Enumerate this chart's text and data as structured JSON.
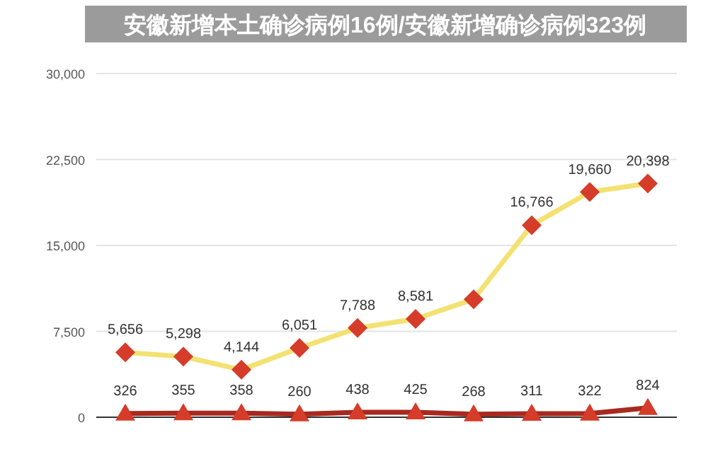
{
  "chart_data": {
    "type": "line",
    "title": "安徽新增本土确诊病例16例/安徽新增确诊病例323例",
    "categories": [
      null,
      null,
      null,
      null,
      null,
      null,
      null,
      null,
      null,
      null
    ],
    "series": [
      {
        "color": "#d63c2a",
        "marker": "diamond",
        "values": [
          5656,
          5298,
          4144,
          6051,
          7788,
          8581,
          10300,
          16766,
          19660,
          20398
        ],
        "value_labels": [
          "5,656",
          "5,298",
          "4,144",
          "6,051",
          "7,788",
          "8,581",
          null,
          "16,766",
          "19,660",
          "20,398"
        ]
      },
      {
        "color": "#d63c2a",
        "marker": "triangle",
        "values": [
          326,
          355,
          358,
          260,
          438,
          425,
          268,
          311,
          322,
          824
        ],
        "value_labels": [
          "326",
          "355",
          "358",
          "260",
          "438",
          "425",
          "268",
          "311",
          "322",
          "824"
        ]
      }
    ],
    "ylim": [
      0,
      30000
    ],
    "yticks": [
      {
        "value": 0,
        "label": "0"
      },
      {
        "value": 7500,
        "label": "7,500"
      },
      {
        "value": 15000,
        "label": "15,000"
      },
      {
        "value": 22500,
        "label": "22,500"
      },
      {
        "value": 30000,
        "label": "30,000"
      }
    ],
    "grid": "y"
  }
}
